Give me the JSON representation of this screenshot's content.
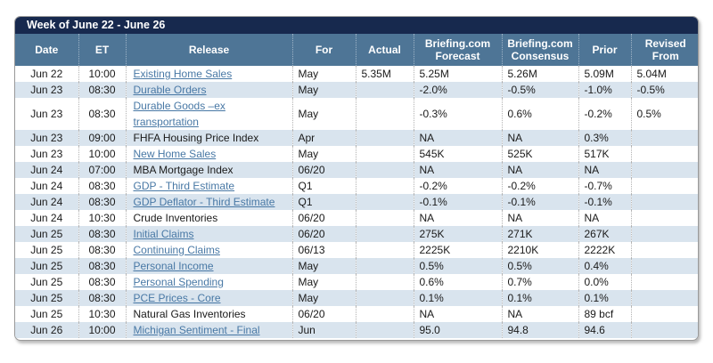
{
  "table": {
    "title": "Week of June 22 - June 26",
    "columns": [
      {
        "label": "Date"
      },
      {
        "label": "ET"
      },
      {
        "label": "Release"
      },
      {
        "label": "For"
      },
      {
        "label": "Actual"
      },
      {
        "label": "Briefing.com Forecast"
      },
      {
        "label": "Briefing.com Consensus"
      },
      {
        "label": "Prior"
      },
      {
        "label": "Revised From"
      }
    ],
    "rows": [
      {
        "date": "Jun 22",
        "et": "10:00",
        "release": "Existing Home Sales",
        "link": true,
        "for": "May",
        "actual": "5.35M",
        "forecast": "5.25M",
        "consensus": "5.26M",
        "prior": "5.09M",
        "revised": "5.04M"
      },
      {
        "date": "Jun 23",
        "et": "08:30",
        "release": "Durable Orders",
        "link": true,
        "for": "May",
        "actual": "",
        "forecast": "-2.0%",
        "consensus": "-0.5%",
        "prior": "-1.0%",
        "revised": "-0.5%"
      },
      {
        "date": "Jun 23",
        "et": "08:30",
        "release": "Durable Goods –ex transportation",
        "link": true,
        "for": "May",
        "actual": "",
        "forecast": "-0.3%",
        "consensus": "0.6%",
        "prior": "-0.2%",
        "revised": "0.5%"
      },
      {
        "date": "Jun 23",
        "et": "09:00",
        "release": "FHFA Housing Price Index",
        "link": false,
        "for": "Apr",
        "actual": "",
        "forecast": "NA",
        "consensus": "NA",
        "prior": "0.3%",
        "revised": ""
      },
      {
        "date": "Jun 23",
        "et": "10:00",
        "release": "New Home Sales",
        "link": true,
        "for": "May",
        "actual": "",
        "forecast": "545K",
        "consensus": "525K",
        "prior": "517K",
        "revised": ""
      },
      {
        "date": "Jun 24",
        "et": "07:00",
        "release": "MBA Mortgage Index",
        "link": false,
        "for": "06/20",
        "actual": "",
        "forecast": "NA",
        "consensus": "NA",
        "prior": "NA",
        "revised": ""
      },
      {
        "date": "Jun 24",
        "et": "08:30",
        "release": "GDP - Third Estimate",
        "link": true,
        "for": "Q1",
        "actual": "",
        "forecast": "-0.2%",
        "consensus": "-0.2%",
        "prior": "-0.7%",
        "revised": ""
      },
      {
        "date": "Jun 24",
        "et": "08:30",
        "release": "GDP Deflator - Third Estimate",
        "link": true,
        "for": "Q1",
        "actual": "",
        "forecast": "-0.1%",
        "consensus": "-0.1%",
        "prior": "-0.1%",
        "revised": ""
      },
      {
        "date": "Jun 24",
        "et": "10:30",
        "release": "Crude Inventories",
        "link": false,
        "for": "06/20",
        "actual": "",
        "forecast": "NA",
        "consensus": "NA",
        "prior": "NA",
        "revised": ""
      },
      {
        "date": "Jun 25",
        "et": "08:30",
        "release": "Initial Claims",
        "link": true,
        "for": "06/20",
        "actual": "",
        "forecast": "275K",
        "consensus": "271K",
        "prior": "267K",
        "revised": ""
      },
      {
        "date": "Jun 25",
        "et": "08:30",
        "release": "Continuing Claims",
        "link": true,
        "for": "06/13",
        "actual": "",
        "forecast": "2225K",
        "consensus": "2210K",
        "prior": "2222K",
        "revised": ""
      },
      {
        "date": "Jun 25",
        "et": "08:30",
        "release": "Personal Income",
        "link": true,
        "for": "May",
        "actual": "",
        "forecast": "0.5%",
        "consensus": "0.5%",
        "prior": "0.4%",
        "revised": ""
      },
      {
        "date": "Jun 25",
        "et": "08:30",
        "release": "Personal Spending",
        "link": true,
        "for": "May",
        "actual": "",
        "forecast": "0.6%",
        "consensus": "0.7%",
        "prior": "0.0%",
        "revised": ""
      },
      {
        "date": "Jun 25",
        "et": "08:30",
        "release": "PCE Prices - Core",
        "link": true,
        "for": "May",
        "actual": "",
        "forecast": "0.1%",
        "consensus": "0.1%",
        "prior": "0.1%",
        "revised": ""
      },
      {
        "date": "Jun 25",
        "et": "10:30",
        "release": "Natural Gas Inventories",
        "link": false,
        "for": "06/20",
        "actual": "",
        "forecast": "NA",
        "consensus": "NA",
        "prior": "89 bcf",
        "revised": ""
      },
      {
        "date": "Jun 26",
        "et": "10:00",
        "release": "Michigan Sentiment - Final",
        "link": true,
        "for": "Jun",
        "actual": "",
        "forecast": "95.0",
        "consensus": "94.8",
        "prior": "94.6",
        "revised": ""
      }
    ],
    "colors": {
      "title_bg": "#17294e",
      "header_bg": "#4e7596",
      "stripe_bg": "#d9e4ee",
      "link": "#4878a5",
      "border": "#9a9a9a"
    }
  }
}
